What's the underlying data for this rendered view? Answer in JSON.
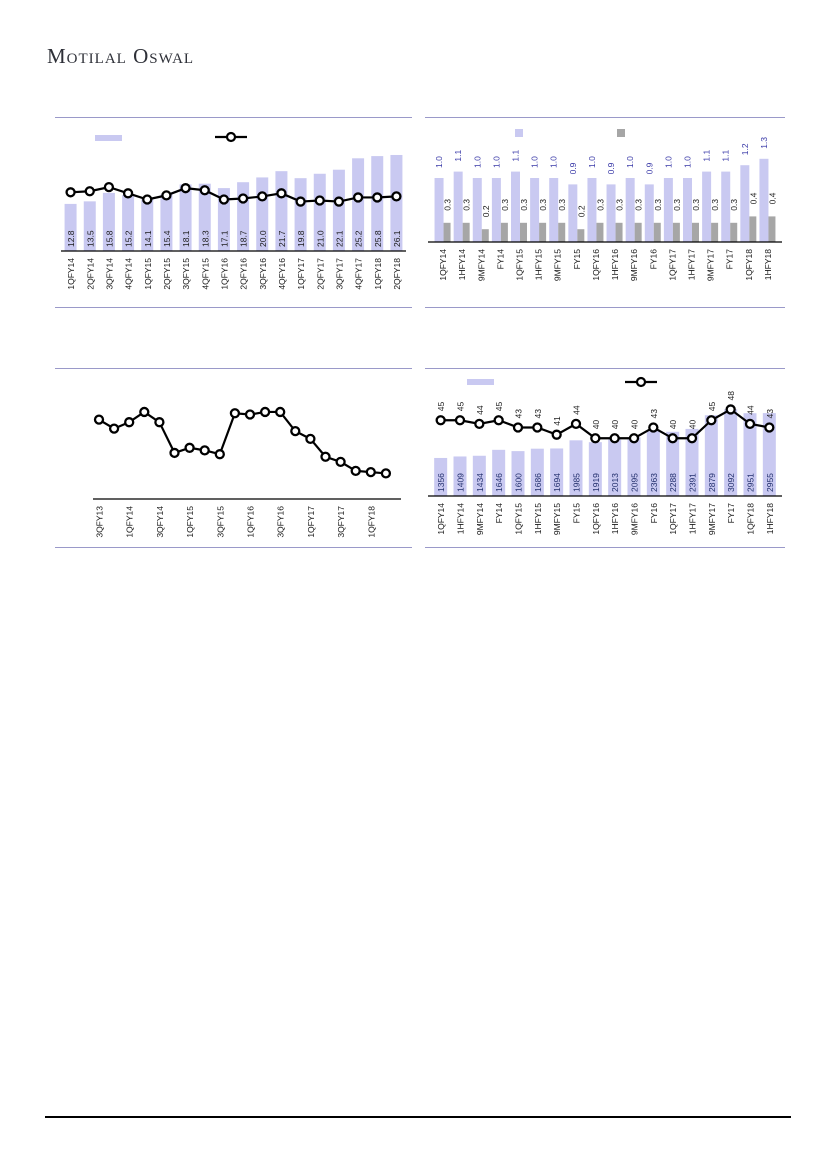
{
  "page": {
    "brand": "Motilal Oswal"
  },
  "colors": {
    "bar_lavender": "#c9c9f1",
    "bar_gray": "#a6a6a6",
    "line_black": "#000000",
    "panel_border": "#9a99c9",
    "label_dark": "#1a1a1a",
    "label_blue": "#3a3aa8",
    "label_navy": "#23306e"
  },
  "chart_data": [
    {
      "id": "c1",
      "type": "bar",
      "title": "",
      "xlabel": "",
      "ylabel": "",
      "legend_position": "top",
      "legend_entries": [
        "bar-series",
        "line-series"
      ],
      "categories": [
        "1QFY14",
        "2QFY14",
        "3QFY14",
        "4QFY14",
        "1QFY15",
        "2QFY15",
        "3QFY15",
        "4QFY15",
        "1QFY16",
        "2QFY16",
        "3QFY16",
        "4QFY16",
        "1QFY17",
        "2QFY17",
        "3QFY17",
        "4QFY17",
        "1QFY18",
        "2QFY18"
      ],
      "values": [
        12.8,
        13.5,
        15.8,
        15.2,
        14.1,
        15.4,
        18.1,
        18.3,
        17.1,
        18.7,
        20.0,
        21.7,
        19.8,
        21.0,
        22.1,
        25.2,
        25.8,
        26.1
      ],
      "bar_labels": [
        "12.8",
        "13.5",
        "15.8",
        "15.2",
        "14.1",
        "15.4",
        "18.1",
        "18.3",
        "17.1",
        "18.7",
        "20.0",
        "21.7",
        "19.8",
        "21.0",
        "22.1",
        "25.2",
        "25.8",
        "26.1"
      ],
      "ylim": [
        0,
        28
      ],
      "grid": false,
      "overlay_line_unlabeled_pct_of_plot": [
        57,
        58,
        62,
        56,
        50,
        54,
        61,
        59,
        50,
        51,
        53,
        56,
        48,
        49,
        48,
        52,
        52,
        53
      ]
    },
    {
      "id": "c2",
      "type": "bar",
      "title": "",
      "xlabel": "",
      "ylabel": "",
      "legend_position": "top",
      "legend_entries": [
        "purple-series",
        "gray-series"
      ],
      "categories": [
        "1QFY14",
        "1HFY14",
        "9MFY14",
        "FY14",
        "1QFY15",
        "1HFY15",
        "9MFY15",
        "FY15",
        "1QFY16",
        "1HFY16",
        "9MFY16",
        "FY16",
        "1QFY17",
        "1HFY17",
        "9MFY17",
        "FY17",
        "1QFY18",
        "1HFY18"
      ],
      "series": [
        {
          "name": "purple-series",
          "values": [
            1.0,
            1.1,
            1.0,
            1.0,
            1.1,
            1.0,
            1.0,
            0.9,
            1.0,
            0.9,
            1.0,
            0.9,
            1.0,
            1.0,
            1.1,
            1.1,
            1.2,
            1.3
          ],
          "labels": [
            "1.0",
            "1.1",
            "1.0",
            "1.0",
            "1.1",
            "1.0",
            "1.0",
            "0.9",
            "1.0",
            "0.9",
            "1.0",
            "0.9",
            "1.0",
            "1.0",
            "1.1",
            "1.1",
            "1.2",
            "1.3"
          ]
        },
        {
          "name": "gray-series",
          "values": [
            0.3,
            0.3,
            0.2,
            0.3,
            0.3,
            0.3,
            0.3,
            0.2,
            0.3,
            0.3,
            0.3,
            0.3,
            0.3,
            0.3,
            0.3,
            0.3,
            0.4,
            0.4
          ],
          "labels": [
            "0.3",
            "0.3",
            "0.2",
            "0.3",
            "0.3",
            "0.3",
            "0.3",
            "0.2",
            "0.3",
            "0.3",
            "0.3",
            "0.3",
            "0.3",
            "0.3",
            "0.3",
            "0.3",
            "0.4",
            "0.4"
          ]
        }
      ],
      "ylim": [
        0,
        1.5
      ],
      "grid": false
    },
    {
      "id": "c3",
      "type": "line",
      "title": "",
      "xlabel": "",
      "ylabel": "",
      "legend_position": "none",
      "categories": [
        "3QFY13",
        "1QFY14",
        "3QFY14",
        "1QFY15",
        "3QFY15",
        "1QFY16",
        "3QFY16",
        "1QFY17",
        "3QFY17",
        "1QFY18"
      ],
      "label_every_nth_point": 2,
      "points_count": 20,
      "values_unlabeled_pct_of_plot": [
        62,
        55,
        60,
        68,
        60,
        36,
        40,
        38,
        35,
        67,
        66,
        68,
        68,
        53,
        47,
        33,
        29,
        22,
        21,
        20
      ],
      "grid": false
    },
    {
      "id": "c4",
      "type": "bar",
      "title": "",
      "xlabel": "",
      "ylabel": "",
      "legend_position": "top",
      "legend_entries": [
        "bar-series",
        "line-series"
      ],
      "categories": [
        "1QFY14",
        "1HFY14",
        "9MFY14",
        "FY14",
        "1QFY15",
        "1HFY15",
        "9MFY15",
        "FY15",
        "1QFY16",
        "1HFY16",
        "9MFY16",
        "FY16",
        "1QFY17",
        "1HFY17",
        "9MFY17",
        "FY17",
        "1QFY18",
        "1HFY18"
      ],
      "values": [
        1356,
        1409,
        1434,
        1646,
        1600,
        1686,
        1694,
        1985,
        1919,
        2013,
        2095,
        2363,
        2288,
        2391,
        2879,
        3092,
        2951,
        2955
      ],
      "bar_labels": [
        "1356",
        "1409",
        "1434",
        "1646",
        "1600",
        "1686",
        "1694",
        "1985",
        "1919",
        "2013",
        "2095",
        "2363",
        "2288",
        "2391",
        "2879",
        "3092",
        "2951",
        "2955"
      ],
      "ylim": [
        0,
        3600
      ],
      "line_values": [
        45,
        45,
        44,
        45,
        43,
        43,
        41,
        44,
        40,
        40,
        40,
        43,
        40,
        40,
        45,
        48,
        44,
        43
      ],
      "line_labels": [
        "45",
        "45",
        "44",
        "45",
        "43",
        "43",
        "41",
        "44",
        "40",
        "40",
        "40",
        "43",
        "40",
        "40",
        "45",
        "48",
        "44",
        "43"
      ],
      "line_axis_range": [
        24,
        52
      ],
      "grid": false
    }
  ]
}
